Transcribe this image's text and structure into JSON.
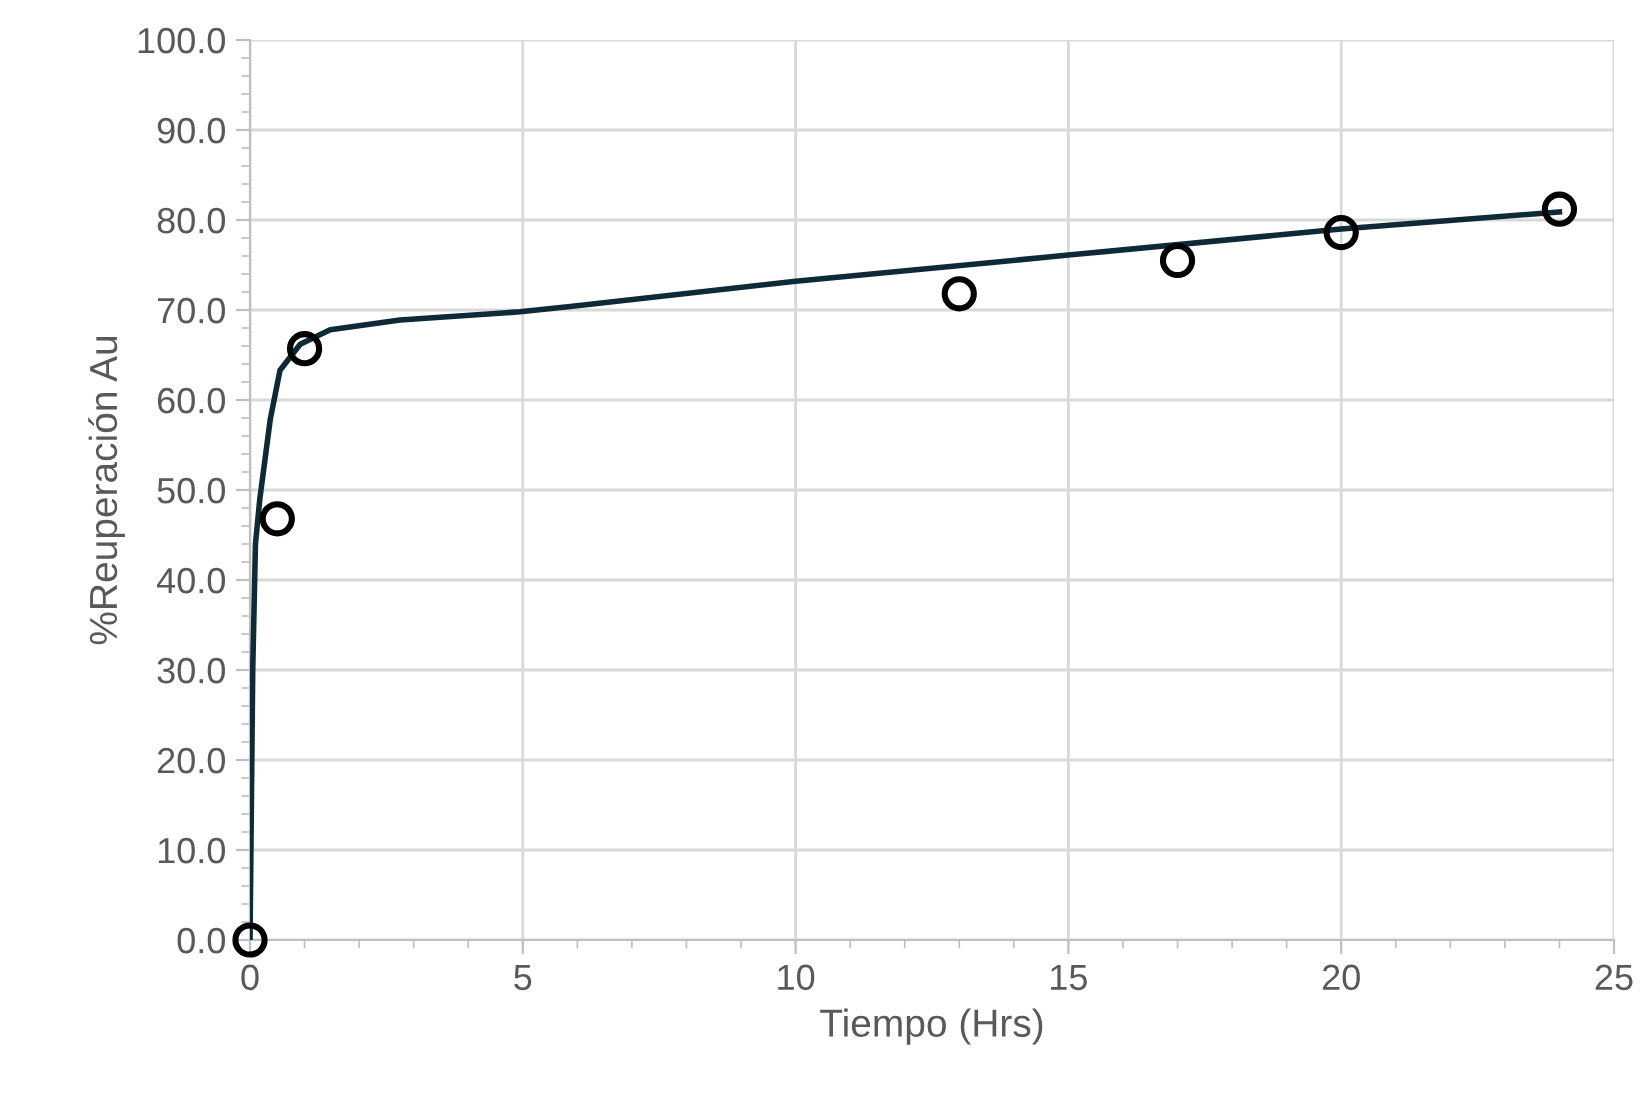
{
  "chart_data": {
    "type": "scatter",
    "xlabel": "Tiempo (Hrs)",
    "ylabel": "%Reuperación Au",
    "xlim": [
      0,
      25
    ],
    "ylim": [
      0,
      100
    ],
    "xticks": [
      0,
      5,
      10,
      15,
      20,
      25
    ],
    "yticks": [
      {
        "value": 0,
        "label": "0.0"
      },
      {
        "value": 10,
        "label": "10.0"
      },
      {
        "value": 20,
        "label": "20.0"
      },
      {
        "value": 30,
        "label": "30.0"
      },
      {
        "value": 40,
        "label": "40.0"
      },
      {
        "value": 50,
        "label": "50.0"
      },
      {
        "value": 60,
        "label": "60.0"
      },
      {
        "value": 70,
        "label": "70.0"
      },
      {
        "value": 80,
        "label": "80.0"
      },
      {
        "value": 90,
        "label": "90.0"
      },
      {
        "value": 100,
        "label": "100.0"
      }
    ],
    "grid": true,
    "legend": false,
    "series": [
      {
        "type": "line",
        "color": "#0d2a36",
        "marker": "none",
        "line_style": "solid",
        "x": [
          0,
          0.05,
          0.1,
          0.18,
          0.37,
          0.55,
          0.92,
          1.47,
          2.75,
          4.95,
          5.87,
          10,
          15,
          20,
          24
        ],
        "values": [
          0,
          30,
          44,
          49,
          57.8,
          63.3,
          66.2,
          67.8,
          68.9,
          69.8,
          70.4,
          73.2,
          76.1,
          79.0,
          80.9
        ]
      },
      {
        "color": "#000000",
        "marker": "circle",
        "x": [
          0,
          0.5,
          1,
          13,
          17,
          20,
          24
        ],
        "values": [
          0,
          46.8,
          65.7,
          71.8,
          75.5,
          78.6,
          81.2
        ]
      }
    ]
  }
}
